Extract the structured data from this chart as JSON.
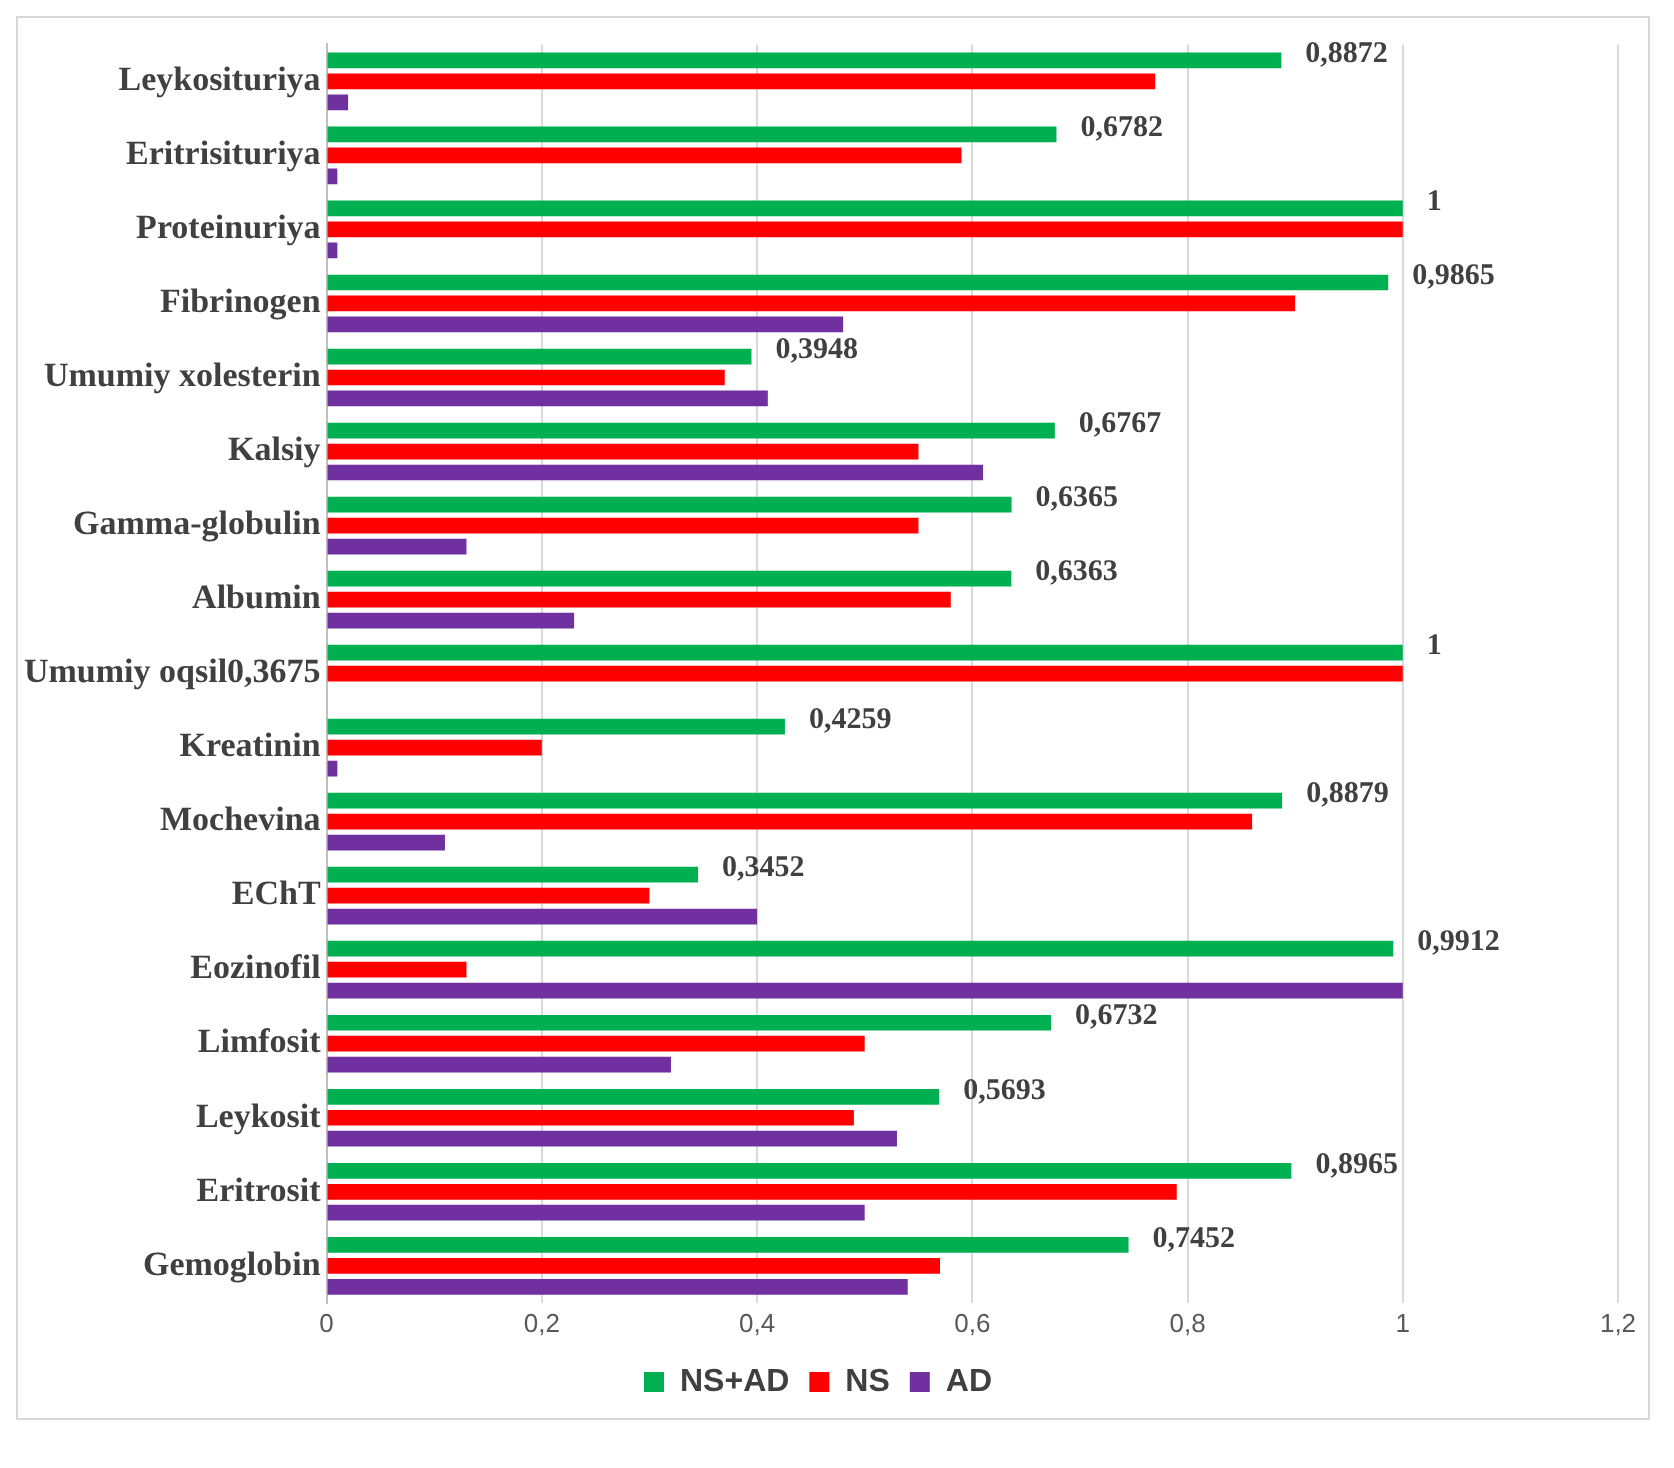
{
  "chart_data": {
    "type": "bar",
    "orientation": "horizontal",
    "categories": [
      "Leykosituriya",
      "Eritrisituriya",
      "Proteinuriya",
      "Fibrinogen",
      "Umumiy xolesterin",
      "Kalsiy",
      "Gamma-globulin",
      "Albumin",
      "Umumiy oqsil0,3675",
      "Kreatinin",
      "Mochevina",
      "EChT",
      "Eozinofil",
      "Limfosit",
      "Leykosit",
      "Eritrosit",
      "Gemoglobin"
    ],
    "series": [
      {
        "name": "NS+AD",
        "color": "#00b050",
        "values": [
          0.8872,
          0.6782,
          1,
          0.9865,
          0.3948,
          0.6767,
          0.6365,
          0.6363,
          1,
          0.4259,
          0.8879,
          0.3452,
          0.9912,
          0.6732,
          0.5693,
          0.8965,
          0.7452
        ],
        "value_labels": [
          "0,8872",
          "0,6782",
          "1",
          "0,9865",
          "0,3948",
          "0,6767",
          "0,6365",
          "0,6363",
          "1",
          "0,4259",
          "0,8879",
          "0,3452",
          "0,9912",
          "0,6732",
          "0,5693",
          "0,8965",
          "0,7452"
        ]
      },
      {
        "name": "NS",
        "color": "#ff0000",
        "values": [
          0.77,
          0.59,
          1,
          0.9,
          0.37,
          0.55,
          0.55,
          0.58,
          1,
          0.2,
          0.86,
          0.3,
          0.13,
          0.5,
          0.49,
          0.79,
          0.57
        ]
      },
      {
        "name": "AD",
        "color": "#7030a0",
        "values": [
          0.02,
          0.01,
          0.01,
          0.48,
          0.41,
          0.61,
          0.13,
          0.23,
          0,
          0.01,
          0.11,
          0.4,
          1,
          0.32,
          0.53,
          0.5,
          0.54
        ]
      }
    ],
    "xlim": [
      0,
      1.2
    ],
    "xticks": [
      0,
      {
        "value": 0.2,
        "label": "0,2"
      },
      {
        "value": 0.4,
        "label": "0,4"
      },
      {
        "value": 0.6,
        "label": "0,6"
      },
      {
        "value": 0.8,
        "label": "0,8"
      },
      1,
      {
        "value": 1.2,
        "label": "1,2"
      }
    ],
    "grid": "x",
    "legend": "bottom"
  }
}
